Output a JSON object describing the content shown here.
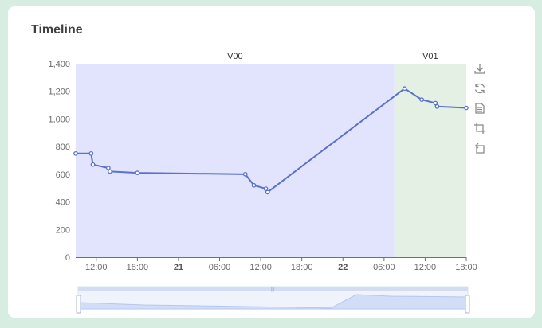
{
  "card": {
    "title": "Timeline"
  },
  "toolbox": [
    {
      "name": "download-icon"
    },
    {
      "name": "refresh-icon"
    },
    {
      "name": "data-view-icon"
    },
    {
      "name": "zoom-icon"
    },
    {
      "name": "zoom-reset-icon"
    }
  ],
  "colors": {
    "band_v00": "#e2e4fd",
    "band_v01": "#e4f0e4",
    "line": "#5a72c8",
    "axis_text": "#6b6b6b",
    "axis_line": "#6e7079"
  },
  "chart_data": {
    "type": "line",
    "title": "",
    "xlabel": "",
    "ylabel": "",
    "ylim": [
      0,
      1400
    ],
    "yticks": [
      "0",
      "200",
      "400",
      "600",
      "800",
      "1,000",
      "1,200",
      "1,400"
    ],
    "xlim": [
      "2024-05-20 09:00",
      "2024-05-22 18:00"
    ],
    "xticks": [
      {
        "t": "2024-05-20 12:00",
        "label": "12:00",
        "bold": false
      },
      {
        "t": "2024-05-20 18:00",
        "label": "18:00",
        "bold": false
      },
      {
        "t": "2024-05-21 00:00",
        "label": "21",
        "bold": true
      },
      {
        "t": "2024-05-21 06:00",
        "label": "06:00",
        "bold": false
      },
      {
        "t": "2024-05-21 12:00",
        "label": "12:00",
        "bold": false
      },
      {
        "t": "2024-05-21 18:00",
        "label": "18:00",
        "bold": false
      },
      {
        "t": "2024-05-22 00:00",
        "label": "22",
        "bold": true
      },
      {
        "t": "2024-05-22 06:00",
        "label": "06:00",
        "bold": false
      },
      {
        "t": "2024-05-22 12:00",
        "label": "12:00",
        "bold": false
      },
      {
        "t": "2024-05-22 18:00",
        "label": "18:00",
        "bold": false
      }
    ],
    "bands": [
      {
        "label": "V00",
        "from": "2024-05-20 09:00",
        "to": "2024-05-22 07:30"
      },
      {
        "label": "V01",
        "from": "2024-05-22 07:30",
        "to": "2024-05-22 18:00"
      }
    ],
    "series": [
      {
        "points": [
          {
            "x": "2024-05-20 09:00",
            "y": 750
          },
          {
            "x": "2024-05-20 11:15",
            "y": 750
          },
          {
            "x": "2024-05-20 11:30",
            "y": 670
          },
          {
            "x": "2024-05-20 13:45",
            "y": 645
          },
          {
            "x": "2024-05-20 14:00",
            "y": 620
          },
          {
            "x": "2024-05-20 18:00",
            "y": 610
          },
          {
            "x": "2024-05-21 09:45",
            "y": 600
          },
          {
            "x": "2024-05-21 11:00",
            "y": 520
          },
          {
            "x": "2024-05-21 12:45",
            "y": 495
          },
          {
            "x": "2024-05-21 13:00",
            "y": 470
          },
          {
            "x": "2024-05-22 09:00",
            "y": 1220
          },
          {
            "x": "2024-05-22 11:30",
            "y": 1140
          },
          {
            "x": "2024-05-22 13:30",
            "y": 1115
          },
          {
            "x": "2024-05-22 13:45",
            "y": 1090
          },
          {
            "x": "2024-05-22 18:00",
            "y": 1080
          }
        ]
      }
    ]
  }
}
